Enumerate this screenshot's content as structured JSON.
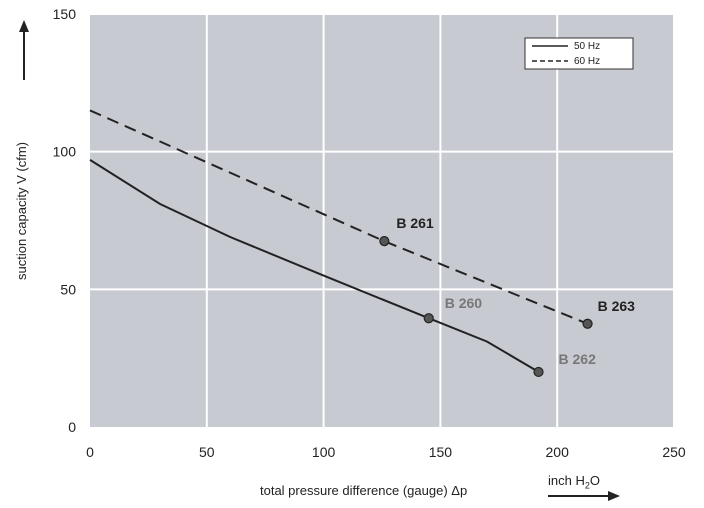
{
  "chart_data": {
    "type": "line",
    "xlabel": "total pressure difference (gauge)  Δp",
    "xunit": {
      "prefix": "inch H",
      "sub": "2",
      "suffix": "O"
    },
    "ylabel": "suction capacity V (cfm)",
    "xlim": [
      0,
      250
    ],
    "ylim": [
      0,
      150
    ],
    "x_ticks": [
      "0",
      "50",
      "100",
      "150",
      "200",
      "250"
    ],
    "y_ticks": [
      "0",
      "50",
      "100",
      "150"
    ],
    "x_tick_values": [
      0,
      50,
      100,
      150,
      200,
      250
    ],
    "y_tick_values": [
      0,
      50,
      100,
      150
    ],
    "grid": true,
    "legend_position": "top-right",
    "series": [
      {
        "name": "50 Hz",
        "style": "solid",
        "color": "#222222",
        "x": [
          0,
          30,
          60,
          100,
          145,
          170,
          192
        ],
        "y": [
          97,
          81,
          69,
          55,
          39.5,
          31,
          20
        ]
      },
      {
        "name": "60 Hz",
        "style": "dashed",
        "color": "#222222",
        "x": [
          0,
          126,
          213
        ],
        "y": [
          115,
          67.5,
          37.5
        ]
      }
    ],
    "points": [
      {
        "label": "B 261",
        "x": 126,
        "y": 67.5,
        "label_color": "#222222"
      },
      {
        "label": "B 260",
        "x": 145,
        "y": 39.5,
        "label_color": "#777777"
      },
      {
        "label": "B 262",
        "x": 192,
        "y": 20,
        "label_color": "#777777"
      },
      {
        "label": "B 263",
        "x": 213,
        "y": 37.5,
        "label_color": "#222222"
      }
    ],
    "plot_background": "#c8cad1",
    "grid_color": "#ffffff"
  }
}
